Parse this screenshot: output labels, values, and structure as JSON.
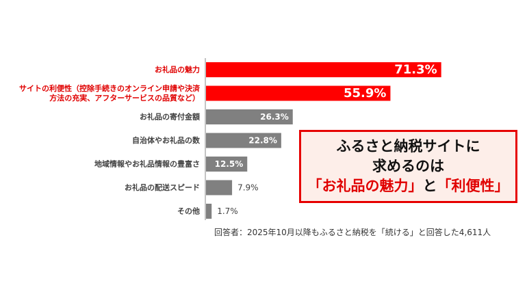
{
  "chart_data": {
    "type": "bar",
    "orientation": "horizontal",
    "categories": [
      [
        "お礼品の魅力"
      ],
      [
        "サイトの利便性（控除手続きのオンライン申請や決済",
        "方法の充実、アフターサービスの品質など）"
      ],
      [
        "お礼品の寄付金額"
      ],
      [
        "自治体やお礼品の数"
      ],
      [
        "地域情報やお礼品情報の豊富さ"
      ],
      [
        "お礼品の配送スピード"
      ],
      [
        "その他"
      ]
    ],
    "values": [
      71.3,
      55.9,
      26.3,
      22.8,
      12.5,
      7.9,
      1.7
    ],
    "value_labels": [
      "71.3%",
      "55.9%",
      "26.3%",
      "22.8%",
      "12.5%",
      "7.9%",
      "1.7%"
    ],
    "unit": "%",
    "highlighted": [
      true,
      true,
      false,
      false,
      false,
      false,
      false
    ],
    "colors": {
      "highlight": "#ff0000",
      "normal": "#808080"
    },
    "xlim": [
      0,
      100
    ],
    "grid": false
  },
  "callout": {
    "line1": "ふるさと納税サイトに",
    "line2": "求めるのは",
    "line3_part1": "「お礼品の魅力」",
    "line3_part2": "と",
    "line3_part3": "「利便性」"
  },
  "footnote": "回答者：2025年10月以降もふるさと納税を「続ける」と回答した4,611人"
}
